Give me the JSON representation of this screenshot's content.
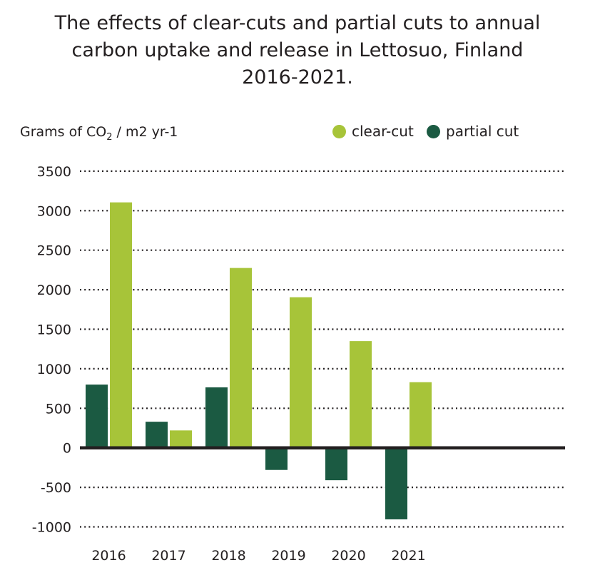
{
  "chart_data": {
    "type": "bar",
    "title": "The effects of clear-cuts and partial cuts to annual carbon uptake and release in Lettosuo, Finland 2016-2021.",
    "title_lines": [
      "The effects of clear-cuts and partial cuts to annual",
      "carbon uptake and release in Lettosuo, Finland",
      "2016-2021."
    ],
    "ylabel": {
      "main": "Grams of CO",
      "sub": "2",
      "rest": " / m2  yr-1"
    },
    "xlabel": "",
    "categories": [
      "2016",
      "2017",
      "2018",
      "2019",
      "2020",
      "2021"
    ],
    "series": [
      {
        "name": "partial cut",
        "color": "#1b5a42",
        "values": [
          800,
          330,
          765,
          -280,
          -410,
          -905
        ]
      },
      {
        "name": "clear-cut",
        "color": "#a7c439",
        "values": [
          3105,
          220,
          2275,
          1905,
          1350,
          830
        ]
      }
    ],
    "legend_order": [
      "clear-cut",
      "partial cut"
    ],
    "ylim": [
      -1000,
      3500
    ],
    "yticks": [
      3500,
      3000,
      2500,
      2000,
      1500,
      1000,
      500,
      0,
      -500,
      -1000
    ],
    "ytick_labels": [
      "3500",
      "3000",
      "2500",
      "2000",
      "1500",
      "1000",
      "500",
      "0",
      "-500",
      "-1000"
    ],
    "grid": "dotted horizontal",
    "legend_position": "top-right"
  }
}
